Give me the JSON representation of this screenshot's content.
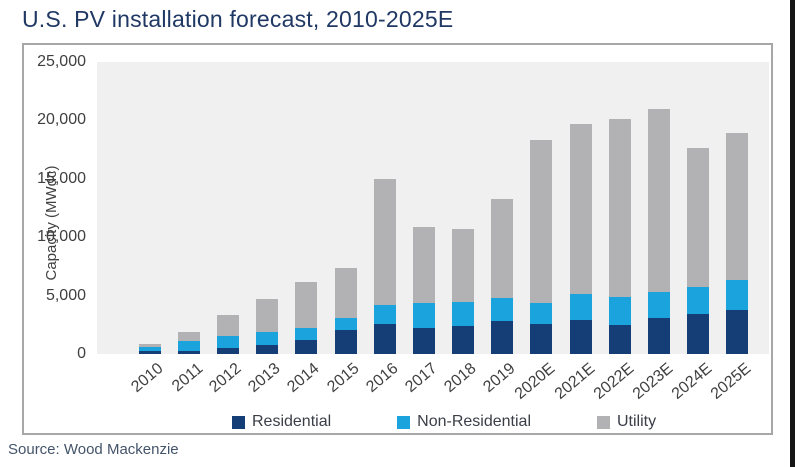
{
  "title": "U.S. PV installation forecast, 2010-2025E",
  "source": "Source: Wood Mackenzie",
  "chart_data": {
    "type": "bar",
    "stacked": true,
    "title": "U.S. PV installation forecast, 2010-2025E",
    "xlabel": "",
    "ylabel": "Capacity (MWdc)",
    "ylim": [
      0,
      25000
    ],
    "yticks": [
      0,
      5000,
      10000,
      15000,
      20000,
      25000
    ],
    "ytick_labels": [
      "0",
      "5,000",
      "10,000",
      "15,000",
      "20,000",
      "25,000"
    ],
    "grid": false,
    "legend_position": "bottom",
    "categories": [
      "2010",
      "2011",
      "2012",
      "2013",
      "2014",
      "2015",
      "2016",
      "2017",
      "2018",
      "2019",
      "2020E",
      "2021E",
      "2022E",
      "2023E",
      "2024E",
      "2025E"
    ],
    "series": [
      {
        "name": "Residential",
        "color": "#153E76",
        "values": [
          250,
          300,
          500,
          790,
          1230,
          2100,
          2580,
          2230,
          2390,
          2820,
          2600,
          2900,
          2500,
          3100,
          3400,
          3800
        ]
      },
      {
        "name": "Non-Residential",
        "color": "#1BA3DE",
        "values": [
          350,
          800,
          1050,
          1110,
          1040,
          1030,
          1590,
          2150,
          2070,
          1990,
          1800,
          2200,
          2400,
          2200,
          2300,
          2500
        ]
      },
      {
        "name": "Utility",
        "color": "#B2B2B5",
        "values": [
          300,
          800,
          1800,
          2850,
          3930,
          4270,
          10830,
          6520,
          6240,
          8490,
          13900,
          14600,
          15200,
          15700,
          11900,
          12600
        ]
      }
    ],
    "totals_estimated": [
      900,
      1900,
      3350,
      4750,
      6200,
      7400,
      15000,
      10900,
      10700,
      13300,
      18300,
      19700,
      20100,
      21000,
      17600,
      18900
    ]
  },
  "colors": {
    "title_text": "#1F3864",
    "axis_text": "#404040",
    "legend_text": "#3A3E47",
    "source_text": "#44546A",
    "plot_background": "#F0F0F1",
    "frame_border": "#A7A7A9",
    "edge_bar": "#161616"
  }
}
